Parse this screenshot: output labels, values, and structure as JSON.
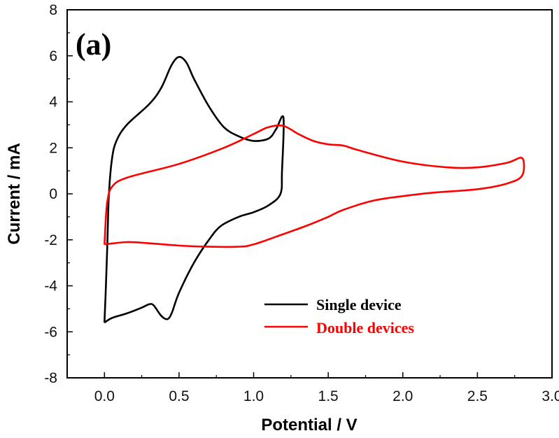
{
  "chart_data": {
    "type": "line",
    "panel_label": "(a)",
    "xlabel": "Potential / V",
    "ylabel": "Current / mA",
    "xlim": [
      -0.25,
      3.0
    ],
    "ylim": [
      -8,
      8
    ],
    "xticks": [
      0.0,
      0.5,
      1.0,
      1.5,
      2.0,
      2.5,
      3.0
    ],
    "xtick_labels": [
      "0.0",
      "0.5",
      "1.0",
      "1.5",
      "2.0",
      "2.5",
      "3.0"
    ],
    "yticks": [
      -8,
      -6,
      -4,
      -2,
      0,
      2,
      4,
      6,
      8
    ],
    "ytick_labels": [
      "-8",
      "-6",
      "-4",
      "-2",
      "0",
      "2",
      "4",
      "6",
      "8"
    ],
    "grid": false,
    "legend_position": "bottom-right",
    "series": [
      {
        "name": "Single device",
        "color": "#000000",
        "points": [
          [
            0.0,
            -5.6
          ],
          [
            0.01,
            -4.0
          ],
          [
            0.02,
            -2.0
          ],
          [
            0.03,
            0.0
          ],
          [
            0.05,
            1.5
          ],
          [
            0.08,
            2.3
          ],
          [
            0.15,
            3.0
          ],
          [
            0.3,
            3.9
          ],
          [
            0.38,
            4.6
          ],
          [
            0.45,
            5.6
          ],
          [
            0.5,
            5.95
          ],
          [
            0.55,
            5.7
          ],
          [
            0.6,
            5.0
          ],
          [
            0.7,
            3.8
          ],
          [
            0.8,
            2.9
          ],
          [
            0.9,
            2.5
          ],
          [
            1.0,
            2.3
          ],
          [
            1.1,
            2.4
          ],
          [
            1.15,
            2.8
          ],
          [
            1.2,
            3.3
          ],
          [
            1.19,
            1.0
          ],
          [
            1.18,
            0.0
          ],
          [
            1.1,
            -0.5
          ],
          [
            1.0,
            -0.8
          ],
          [
            0.9,
            -1.0
          ],
          [
            0.78,
            -1.4
          ],
          [
            0.7,
            -2.0
          ],
          [
            0.6,
            -3.0
          ],
          [
            0.5,
            -4.3
          ],
          [
            0.45,
            -5.2
          ],
          [
            0.42,
            -5.45
          ],
          [
            0.38,
            -5.3
          ],
          [
            0.33,
            -4.85
          ],
          [
            0.3,
            -4.8
          ],
          [
            0.25,
            -4.95
          ],
          [
            0.15,
            -5.2
          ],
          [
            0.05,
            -5.4
          ],
          [
            0.0,
            -5.6
          ]
        ]
      },
      {
        "name": "Double devices",
        "color": "#ff0000",
        "points": [
          [
            0.0,
            -2.2
          ],
          [
            0.01,
            -1.0
          ],
          [
            0.02,
            -0.3
          ],
          [
            0.05,
            0.3
          ],
          [
            0.15,
            0.7
          ],
          [
            0.5,
            1.3
          ],
          [
            0.8,
            2.0
          ],
          [
            1.0,
            2.6
          ],
          [
            1.1,
            2.9
          ],
          [
            1.2,
            2.95
          ],
          [
            1.3,
            2.6
          ],
          [
            1.4,
            2.3
          ],
          [
            1.5,
            2.15
          ],
          [
            1.6,
            2.1
          ],
          [
            1.7,
            1.9
          ],
          [
            2.0,
            1.4
          ],
          [
            2.3,
            1.15
          ],
          [
            2.5,
            1.15
          ],
          [
            2.7,
            1.35
          ],
          [
            2.8,
            1.55
          ],
          [
            2.8,
            0.8
          ],
          [
            2.7,
            0.45
          ],
          [
            2.5,
            0.2
          ],
          [
            2.2,
            0.05
          ],
          [
            2.0,
            -0.1
          ],
          [
            1.8,
            -0.3
          ],
          [
            1.6,
            -0.7
          ],
          [
            1.5,
            -1.0
          ],
          [
            1.35,
            -1.4
          ],
          [
            1.2,
            -1.75
          ],
          [
            1.0,
            -2.2
          ],
          [
            0.9,
            -2.3
          ],
          [
            0.7,
            -2.3
          ],
          [
            0.5,
            -2.25
          ],
          [
            0.3,
            -2.15
          ],
          [
            0.15,
            -2.1
          ],
          [
            0.0,
            -2.2
          ]
        ]
      }
    ]
  }
}
